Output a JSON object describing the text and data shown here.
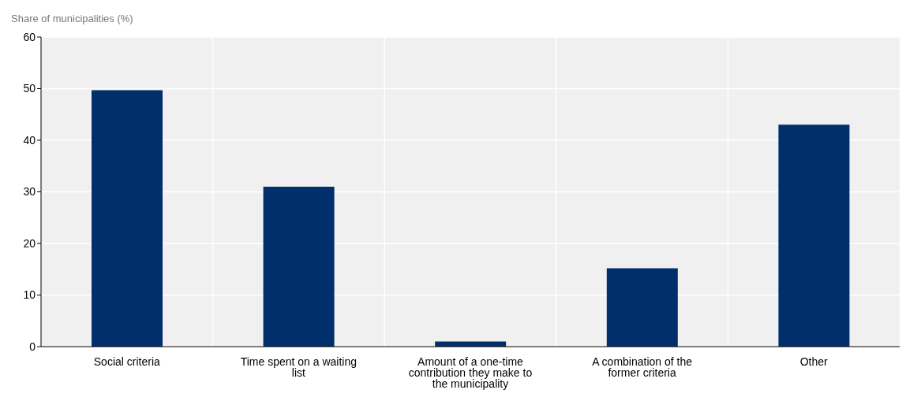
{
  "chart_data": {
    "type": "bar",
    "ylabel": "Share of municipalities (%)",
    "categories": [
      "Social criteria",
      "Time spent on a waiting list",
      "Amount of a one-time contribution they make to the municipality",
      "A combination of the former criteria",
      "Other"
    ],
    "values": [
      49.7,
      31,
      1,
      15.2,
      43
    ],
    "color": "#002f6c",
    "ylim": [
      0,
      60
    ],
    "yticks": [
      0,
      10,
      20,
      30,
      40,
      50,
      60
    ],
    "grid": true
  }
}
